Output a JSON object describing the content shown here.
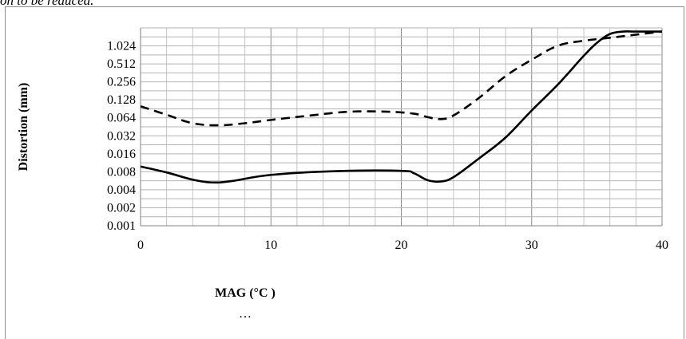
{
  "page": {
    "caption_fragment": "on to be reduced.",
    "ellipsis": "…"
  },
  "chart_data": {
    "type": "line",
    "title": "",
    "xlabel": "MAG (°C )",
    "ylabel": "Distortion (mm)",
    "xlim": [
      0,
      40
    ],
    "x_ticks": [
      0,
      10,
      20,
      30,
      40
    ],
    "y_scale": "log2",
    "ylim": [
      0.001,
      2.048
    ],
    "y_ticks": [
      "0.001",
      "0.002",
      "0.004",
      "0.008",
      "0.016",
      "0.032",
      "0.064",
      "0.128",
      "0.256",
      "0.512",
      "1.024"
    ],
    "grid": true,
    "legend": "none",
    "series": [
      {
        "style": "solid",
        "color": "#000000",
        "points": [
          [
            0,
            0.0098
          ],
          [
            2,
            0.0078
          ],
          [
            4,
            0.0059
          ],
          [
            5.5,
            0.0053
          ],
          [
            7,
            0.0056
          ],
          [
            10,
            0.0071
          ],
          [
            15,
            0.0082
          ],
          [
            20,
            0.0083
          ],
          [
            21,
            0.0075
          ],
          [
            22,
            0.0058
          ],
          [
            23,
            0.0055
          ],
          [
            24,
            0.0065
          ],
          [
            26,
            0.0136
          ],
          [
            28,
            0.03
          ],
          [
            30,
            0.085
          ],
          [
            32,
            0.23
          ],
          [
            34,
            0.7
          ],
          [
            35,
            1.15
          ],
          [
            36,
            1.62
          ],
          [
            37,
            1.78
          ],
          [
            38,
            1.78
          ],
          [
            40,
            1.78
          ]
        ]
      },
      {
        "style": "dashed",
        "color": "#000000",
        "points": [
          [
            0,
            0.1
          ],
          [
            2,
            0.072
          ],
          [
            4,
            0.052
          ],
          [
            6,
            0.048
          ],
          [
            8,
            0.052
          ],
          [
            10,
            0.059
          ],
          [
            13,
            0.07
          ],
          [
            16,
            0.081
          ],
          [
            19,
            0.081
          ],
          [
            21,
            0.075
          ],
          [
            22,
            0.066
          ],
          [
            23,
            0.061
          ],
          [
            24,
            0.07
          ],
          [
            26,
            0.14
          ],
          [
            28,
            0.32
          ],
          [
            30,
            0.6
          ],
          [
            32,
            1.03
          ],
          [
            34,
            1.25
          ],
          [
            36,
            1.4
          ],
          [
            38,
            1.58
          ],
          [
            40,
            1.78
          ]
        ]
      }
    ]
  }
}
